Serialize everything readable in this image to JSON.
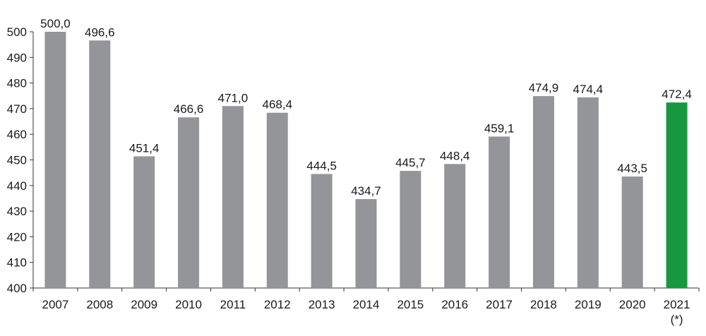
{
  "chart_data": {
    "type": "bar",
    "categories": [
      "2007",
      "2008",
      "2009",
      "2010",
      "2011",
      "2012",
      "2013",
      "2014",
      "2015",
      "2016",
      "2017",
      "2018",
      "2019",
      "2020",
      "2021"
    ],
    "category_notes": [
      "",
      "",
      "",
      "",
      "",
      "",
      "",
      "",
      "",
      "",
      "",
      "",
      "",
      "",
      "(*)"
    ],
    "values": [
      500.0,
      496.6,
      451.4,
      466.6,
      471.0,
      468.4,
      444.5,
      434.7,
      445.7,
      448.4,
      459.1,
      474.9,
      474.4,
      443.5,
      472.4
    ],
    "value_labels": [
      "500,0",
      "496,6",
      "451,4",
      "466,6",
      "471,0",
      "468,4",
      "444,5",
      "434,7",
      "445,7",
      "448,4",
      "459,1",
      "474,9",
      "474,4",
      "443,5",
      "472,4"
    ],
    "yticks": [
      "400",
      "410",
      "420",
      "430",
      "440",
      "450",
      "460",
      "470",
      "480",
      "490",
      "500"
    ],
    "ylim": [
      400,
      500
    ],
    "grid": false,
    "colors": {
      "default_bar": "#939598",
      "highlight_bar": "#17983f",
      "axis": "#333333"
    },
    "highlight_index": 14
  }
}
